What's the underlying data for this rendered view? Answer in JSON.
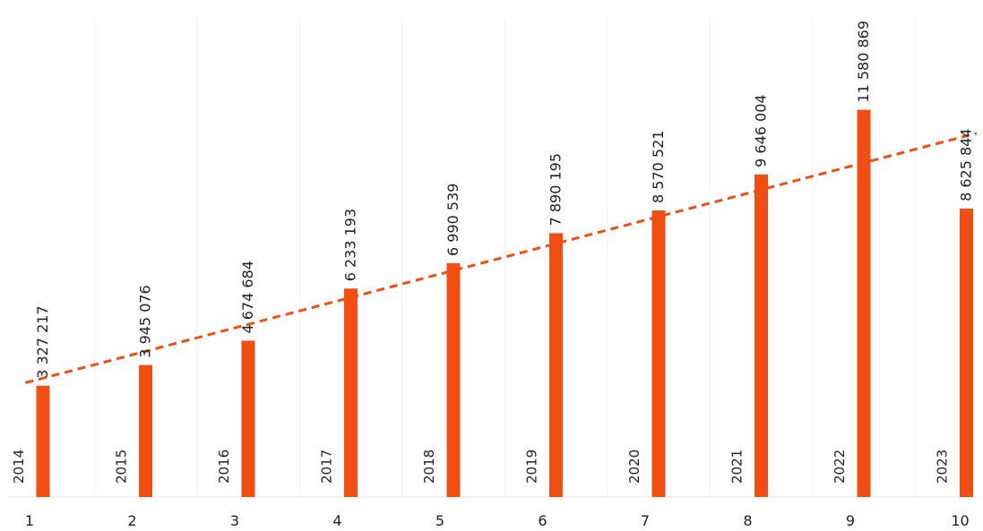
{
  "chart_data": {
    "type": "bar",
    "x": [
      "1",
      "2",
      "3",
      "4",
      "5",
      "6",
      "7",
      "8",
      "9",
      "10"
    ],
    "year_labels": [
      "2014",
      "2015",
      "2016",
      "2017",
      "2018",
      "2019",
      "2020",
      "2021",
      "2022",
      "2023"
    ],
    "values": [
      3327217,
      3945076,
      4674684,
      6233193,
      6990539,
      7890195,
      8570521,
      9646004,
      11580869,
      8625844
    ],
    "value_labels": [
      "3 327 217",
      "3 945 076",
      "4 674 684",
      "6 233 193",
      "6 990 539",
      "7 890 195",
      "8 570 521",
      "9 646 004",
      "11 580 869",
      "8 625 844"
    ],
    "trendline": {
      "type": "linear",
      "style": "dashed"
    },
    "title": "",
    "xlabel": "",
    "ylabel": "",
    "ylim": [
      0,
      12500000
    ],
    "grid": false,
    "legend": "none",
    "colors": {
      "bar": "#F04E12",
      "trend": "#F04E12",
      "text": "#222222"
    }
  }
}
